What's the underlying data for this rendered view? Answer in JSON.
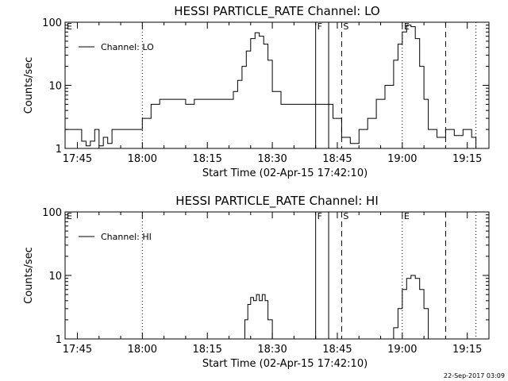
{
  "chart_data": [
    {
      "type": "line",
      "title": "HESSI PARTICLE_RATE Channel: LO",
      "xlabel": "Start Time (02-Apr-15 17:42:10)",
      "ylabel": "Counts/sec",
      "y_scale": "log",
      "ylim": [
        1,
        100
      ],
      "y_ticks": [
        "1",
        "10",
        "100"
      ],
      "x_ticks": [
        "17:45",
        "18:00",
        "18:15",
        "18:30",
        "18:45",
        "19:00",
        "19:15"
      ],
      "xlim": [
        "17:42:10",
        "19:20:00"
      ],
      "legend": {
        "placement": "top-left",
        "entries": [
          "Channel: LO"
        ]
      },
      "markers": [
        {
          "label": "E",
          "time": "17:42:10",
          "style": "none"
        },
        {
          "label": "",
          "time": "18:00:00",
          "style": "dotted"
        },
        {
          "label": "F",
          "time": "18:40:00",
          "style": "solid"
        },
        {
          "label": "",
          "time": "18:43:00",
          "style": "solid"
        },
        {
          "label": "S",
          "time": "18:46:00",
          "style": "dashed"
        },
        {
          "label": "E",
          "time": "19:00:00",
          "style": "dotted"
        },
        {
          "label": "",
          "time": "19:10:00",
          "style": "dashed"
        },
        {
          "label": "",
          "time": "19:17:00",
          "style": "dotted"
        }
      ],
      "series": [
        {
          "name": "Channel: LO",
          "x": [
            "17:42:10",
            "17:45:00",
            "17:46:00",
            "17:47:00",
            "17:48:00",
            "17:49:00",
            "17:50:00",
            "17:51:00",
            "17:52:00",
            "17:53:00",
            "17:55:00",
            "17:57:00",
            "18:00:00",
            "18:02:00",
            "18:04:00",
            "18:06:00",
            "18:08:00",
            "18:10:00",
            "18:12:00",
            "18:14:00",
            "18:16:00",
            "18:18:00",
            "18:19:30",
            "18:21:00",
            "18:22:00",
            "18:23:00",
            "18:24:00",
            "18:25:00",
            "18:26:00",
            "18:27:00",
            "18:28:00",
            "18:29:00",
            "18:30:00",
            "18:32:00",
            "18:35:00",
            "18:38:00",
            "18:41:00",
            "18:43:00",
            "18:44:00",
            "18:46:00",
            "18:48:00",
            "18:50:00",
            "18:52:00",
            "18:54:00",
            "18:56:00",
            "18:58:00",
            "18:59:00",
            "19:00:00",
            "19:01:00",
            "19:02:00",
            "19:03:00",
            "19:04:00",
            "19:05:00",
            "19:06:00",
            "19:08:00",
            "19:10:00",
            "19:12:00",
            "19:14:00",
            "19:16:00",
            "19:17:00"
          ],
          "values": [
            2,
            2,
            1.3,
            1.1,
            1.3,
            2,
            1.1,
            1.5,
            1.2,
            2,
            2,
            2,
            3,
            5,
            6,
            6,
            6,
            5,
            6,
            6,
            6,
            6,
            6,
            8,
            12,
            20,
            35,
            55,
            68,
            60,
            45,
            25,
            8,
            5,
            5,
            5,
            5,
            5,
            3,
            1.5,
            1.2,
            2,
            3,
            6,
            10,
            25,
            45,
            70,
            90,
            85,
            55,
            20,
            6,
            2,
            1.5,
            2,
            1.6,
            2,
            1.5,
            1
          ]
        }
      ]
    },
    {
      "type": "line",
      "title": "HESSI PARTICLE_RATE Channel: HI",
      "xlabel": "Start Time (02-Apr-15 17:42:10)",
      "ylabel": "Counts/sec",
      "y_scale": "log",
      "ylim": [
        1,
        100
      ],
      "y_ticks": [
        "1",
        "10",
        "100"
      ],
      "x_ticks": [
        "17:45",
        "18:00",
        "18:15",
        "18:30",
        "18:45",
        "19:00",
        "19:15"
      ],
      "xlim": [
        "17:42:10",
        "19:20:00"
      ],
      "legend": {
        "placement": "top-left",
        "entries": [
          "Channel: HI"
        ]
      },
      "markers": [
        {
          "label": "E",
          "time": "17:42:10",
          "style": "none"
        },
        {
          "label": "",
          "time": "18:00:00",
          "style": "dotted"
        },
        {
          "label": "F",
          "time": "18:40:00",
          "style": "solid"
        },
        {
          "label": "",
          "time": "18:43:00",
          "style": "solid"
        },
        {
          "label": "S",
          "time": "18:46:00",
          "style": "dashed"
        },
        {
          "label": "E",
          "time": "19:00:00",
          "style": "dotted"
        },
        {
          "label": "",
          "time": "19:10:00",
          "style": "dashed"
        },
        {
          "label": "",
          "time": "19:17:00",
          "style": "dotted"
        }
      ],
      "series": [
        {
          "name": "Channel: HI",
          "x": [
            "18:23:00",
            "18:23:40",
            "18:24:20",
            "18:25:00",
            "18:25:40",
            "18:26:20",
            "18:27:00",
            "18:27:40",
            "18:28:20",
            "18:29:00",
            "18:30:00",
            "18:57:00",
            "18:58:00",
            "18:59:00",
            "19:00:00",
            "19:01:00",
            "19:02:00",
            "19:03:00",
            "19:04:00",
            "19:05:00",
            "19:06:00"
          ],
          "values": [
            1,
            2,
            3.5,
            4.5,
            4,
            5,
            4,
            5,
            4,
            2,
            1,
            1,
            1.5,
            3,
            6,
            9,
            10,
            9,
            6,
            3,
            1
          ]
        }
      ]
    }
  ],
  "footer": {
    "timestamp": "22-Sep-2017 03:09"
  }
}
